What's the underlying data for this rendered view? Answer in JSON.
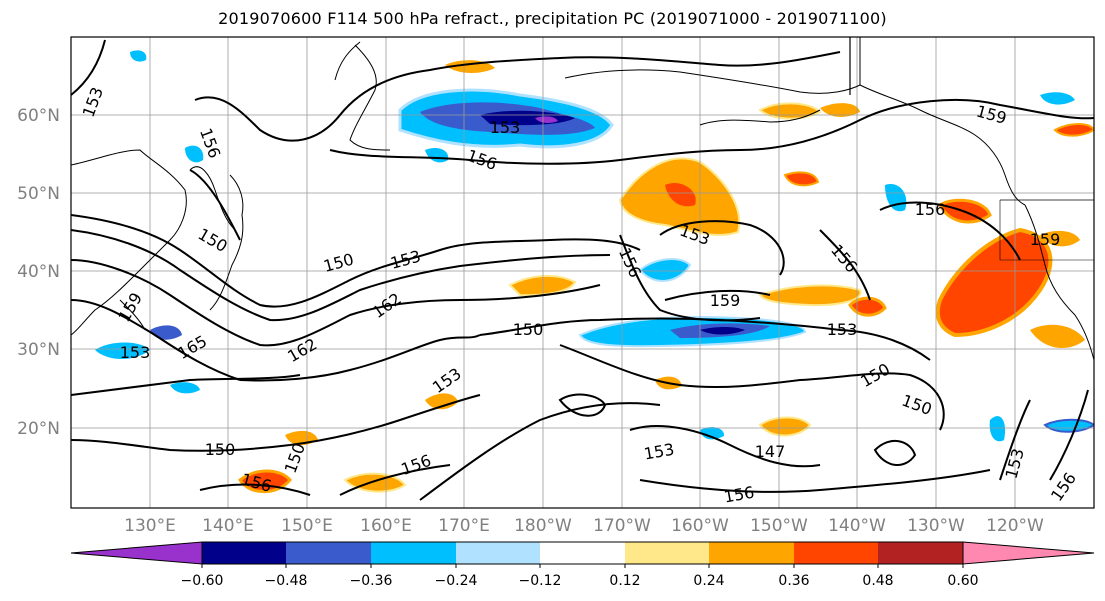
{
  "title": "2019070600 F114 500 hPa refract., precipitation PC (2019071000 - 2019071100)",
  "map": {
    "lat_labels": [
      "60°N",
      "50°N",
      "40°N",
      "30°N",
      "20°N"
    ],
    "lon_labels": [
      "130°E",
      "140°E",
      "150°E",
      "160°E",
      "170°E",
      "180°W",
      "170°W",
      "160°W",
      "150°W",
      "140°W",
      "130°W",
      "120°W"
    ],
    "contour_labels": [
      "153",
      "153",
      "156",
      "156",
      "150",
      "150",
      "153",
      "162",
      "162",
      "159",
      "165",
      "153",
      "150",
      "150",
      "153",
      "156",
      "159",
      "150",
      "153",
      "153",
      "159",
      "156",
      "150",
      "150",
      "153",
      "147",
      "156",
      "156",
      "153",
      "156",
      "159",
      "156",
      "156"
    ],
    "grid": true,
    "label_color": "#808080"
  },
  "colorbar": {
    "ticks": [
      "−0.60",
      "−0.48",
      "−0.36",
      "−0.24",
      "−0.12",
      "0.12",
      "0.24",
      "0.36",
      "0.48",
      "0.60"
    ],
    "colors": [
      "#9932cc",
      "#00008b",
      "#3a5bcc",
      "#00bfff",
      "#b0e2ff",
      "#ffffff",
      "#ffe88a",
      "#ffa500",
      "#ff4500",
      "#b22222",
      "#ff88b0"
    ],
    "extend": "both"
  }
}
